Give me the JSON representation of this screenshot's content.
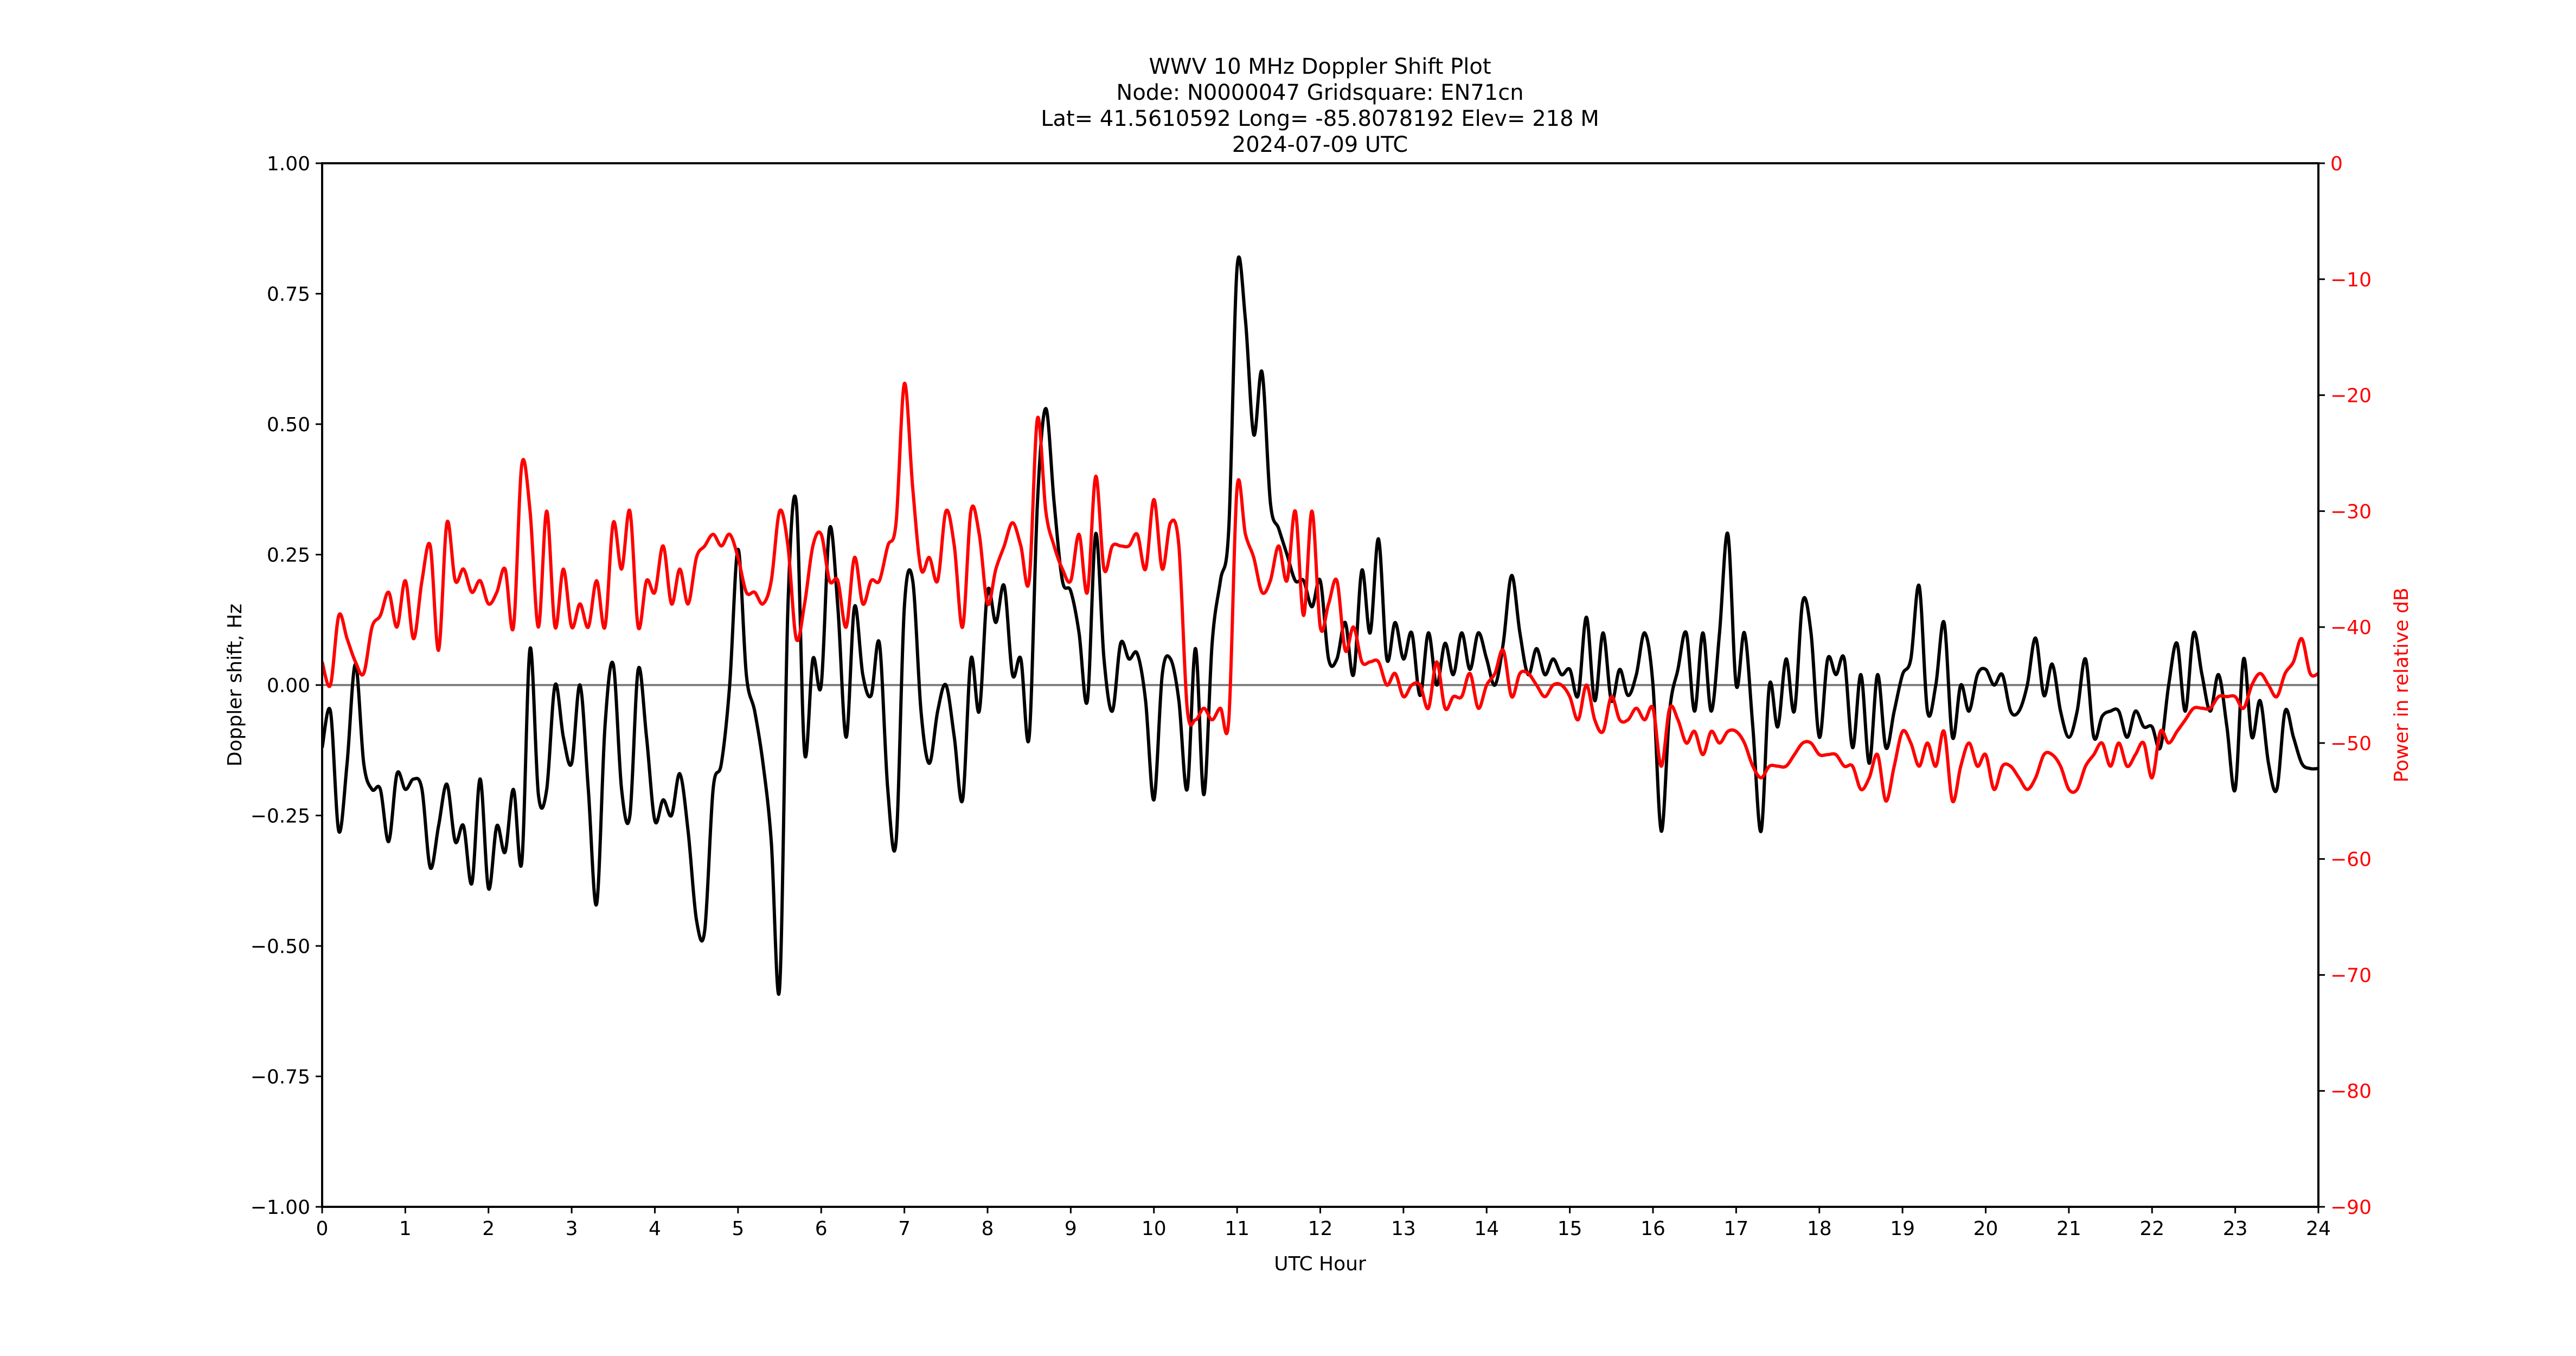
{
  "chart_data": {
    "type": "line",
    "title": [
      "WWV 10 MHz Doppler Shift Plot",
      "Node:  N0000047     Gridsquare:  EN71cn",
      "Lat= 41.5610592    Long= -85.8078192    Elev= 218 M",
      "2024-07-09  UTC"
    ],
    "xlabel": "UTC Hour",
    "ylabel": "Doppler shift, Hz",
    "y2label": "Power in relative dB",
    "xlim": [
      0,
      24
    ],
    "ylim": [
      -1.0,
      1.0
    ],
    "y2lim": [
      -90,
      0
    ],
    "xticks": [
      "0",
      "1",
      "2",
      "3",
      "4",
      "5",
      "6",
      "7",
      "8",
      "9",
      "10",
      "11",
      "12",
      "13",
      "14",
      "15",
      "16",
      "17",
      "18",
      "19",
      "20",
      "21",
      "22",
      "23",
      "24"
    ],
    "yticks": [
      "1.00",
      "0.75",
      "0.50",
      "0.25",
      "0.00",
      "−0.25",
      "−0.50",
      "−0.75",
      "−1.00"
    ],
    "y2ticks": [
      "0",
      "−10",
      "−20",
      "−30",
      "−40",
      "−50",
      "−60",
      "−70",
      "−80",
      "−90"
    ],
    "grid": false,
    "reference_line": {
      "y": 0,
      "color": "#808080"
    },
    "x_start": 0,
    "x_step": 0.1,
    "series": [
      {
        "name": "Doppler shift, Hz",
        "axis": "left",
        "color": "#000000",
        "values": [
          -0.12,
          -0.05,
          -0.28,
          -0.15,
          0.04,
          -0.15,
          -0.2,
          -0.2,
          -0.3,
          -0.17,
          -0.2,
          -0.18,
          -0.2,
          -0.35,
          -0.27,
          -0.19,
          -0.3,
          -0.27,
          -0.38,
          -0.18,
          -0.39,
          -0.27,
          -0.32,
          -0.2,
          -0.34,
          0.07,
          -0.21,
          -0.2,
          0.0,
          -0.1,
          -0.15,
          0.0,
          -0.2,
          -0.42,
          -0.08,
          0.04,
          -0.2,
          -0.25,
          0.03,
          -0.1,
          -0.26,
          -0.22,
          -0.25,
          -0.17,
          -0.28,
          -0.45,
          -0.47,
          -0.2,
          -0.15,
          0.0,
          0.26,
          0.02,
          -0.05,
          -0.15,
          -0.3,
          -0.58,
          0.15,
          0.35,
          -0.13,
          0.05,
          0.0,
          0.3,
          0.15,
          -0.1,
          0.15,
          0.02,
          -0.02,
          0.08,
          -0.2,
          -0.3,
          0.15,
          0.2,
          -0.05,
          -0.15,
          -0.05,
          0.0,
          -0.1,
          -0.22,
          0.05,
          -0.05,
          0.18,
          0.12,
          0.19,
          0.02,
          0.05,
          -0.1,
          0.35,
          0.53,
          0.35,
          0.2,
          0.18,
          0.1,
          -0.03,
          0.29,
          0.05,
          -0.05,
          0.08,
          0.05,
          0.06,
          -0.03,
          -0.22,
          0.02,
          0.05,
          -0.03,
          -0.2,
          0.07,
          -0.21,
          0.08,
          0.2,
          0.3,
          0.8,
          0.7,
          0.48,
          0.6,
          0.35,
          0.3,
          0.25,
          0.2,
          0.2,
          0.15,
          0.2,
          0.05,
          0.05,
          0.12,
          0.02,
          0.22,
          0.1,
          0.28,
          0.05,
          0.12,
          0.05,
          0.1,
          -0.02,
          0.1,
          0.0,
          0.08,
          0.02,
          0.1,
          0.03,
          0.1,
          0.05,
          0.0,
          0.08,
          0.21,
          0.1,
          0.02,
          0.07,
          0.02,
          0.05,
          0.02,
          0.03,
          -0.02,
          0.13,
          -0.03,
          0.1,
          -0.03,
          0.03,
          -0.02,
          0.02,
          0.1,
          0.0,
          -0.28,
          -0.05,
          0.03,
          0.1,
          -0.05,
          0.1,
          -0.05,
          0.1,
          0.29,
          0.0,
          0.1,
          -0.08,
          -0.28,
          0.0,
          -0.08,
          0.05,
          -0.05,
          0.16,
          0.1,
          -0.1,
          0.05,
          0.02,
          0.05,
          -0.12,
          0.02,
          -0.15,
          0.02,
          -0.12,
          -0.05,
          0.02,
          0.05,
          0.19,
          -0.05,
          0.0,
          0.12,
          -0.1,
          0.0,
          -0.05,
          0.02,
          0.03,
          0.0,
          0.02,
          -0.05,
          -0.05,
          0.0,
          0.09,
          -0.02,
          0.04,
          -0.05,
          -0.1,
          -0.05,
          0.05,
          -0.1,
          -0.06,
          -0.05,
          -0.05,
          -0.1,
          -0.05,
          -0.08,
          -0.08,
          -0.12,
          0.0,
          0.08,
          -0.05,
          0.1,
          0.02,
          -0.05,
          0.02,
          -0.08,
          -0.2,
          0.05,
          -0.1,
          -0.03,
          -0.15,
          -0.2,
          -0.05,
          -0.1,
          -0.15,
          -0.16,
          -0.16
        ]
      },
      {
        "name": "Power in relative dB",
        "axis": "right",
        "color": "#ff0000",
        "values": [
          -43,
          -45,
          -39,
          -41,
          -43,
          -44,
          -40,
          -39,
          -37,
          -40,
          -36,
          -41,
          -36,
          -33,
          -42,
          -31,
          -36,
          -35,
          -37,
          -36,
          -38,
          -37,
          -35,
          -40,
          -26,
          -30,
          -40,
          -30,
          -40,
          -35,
          -40,
          -38,
          -40,
          -36,
          -40,
          -31,
          -35,
          -30,
          -40,
          -36,
          -37,
          -33,
          -38,
          -35,
          -38,
          -34,
          -33,
          -32,
          -33,
          -32,
          -34,
          -37,
          -37,
          -38,
          -36,
          -30,
          -33,
          -41,
          -38,
          -33,
          -32,
          -36,
          -36,
          -40,
          -34,
          -38,
          -36,
          -36,
          -33,
          -31,
          -19,
          -28,
          -35,
          -34,
          -36,
          -30,
          -33,
          -40,
          -30,
          -32,
          -38,
          -35,
          -33,
          -31,
          -33,
          -36,
          -22,
          -30,
          -33,
          -35,
          -36,
          -32,
          -37,
          -27,
          -35,
          -33,
          -33,
          -33,
          -32,
          -35,
          -29,
          -35,
          -31,
          -33,
          -47,
          -48,
          -47,
          -48,
          -47,
          -48,
          -28,
          -32,
          -34,
          -37,
          -36,
          -33,
          -36,
          -30,
          -39,
          -30,
          -40,
          -38,
          -36,
          -42,
          -40,
          -43,
          -43,
          -43,
          -45,
          -44,
          -46,
          -45,
          -45,
          -47,
          -43,
          -47,
          -46,
          -46,
          -44,
          -47,
          -45,
          -44,
          -42,
          -46,
          -44,
          -44,
          -45,
          -46,
          -45,
          -45,
          -46,
          -48,
          -45,
          -48,
          -49,
          -46,
          -48,
          -48,
          -47,
          -48,
          -47,
          -52,
          -47,
          -48,
          -50,
          -49,
          -51,
          -49,
          -50,
          -49,
          -49,
          -50,
          -52,
          -53,
          -52,
          -52,
          -52,
          -51,
          -50,
          -50,
          -51,
          -51,
          -51,
          -52,
          -52,
          -54,
          -53,
          -51,
          -55,
          -52,
          -49,
          -50,
          -52,
          -50,
          -52,
          -49,
          -55,
          -52,
          -50,
          -52,
          -51,
          -54,
          -52,
          -52,
          -53,
          -54,
          -53,
          -51,
          -51,
          -52,
          -54,
          -54,
          -52,
          -51,
          -50,
          -52,
          -50,
          -52,
          -51,
          -50,
          -53,
          -49,
          -50,
          -49,
          -48,
          -47,
          -47,
          -47,
          -46,
          -46,
          -46,
          -47,
          -45,
          -44,
          -45,
          -46,
          -44,
          -43,
          -41,
          -44,
          -44
        ]
      }
    ]
  }
}
